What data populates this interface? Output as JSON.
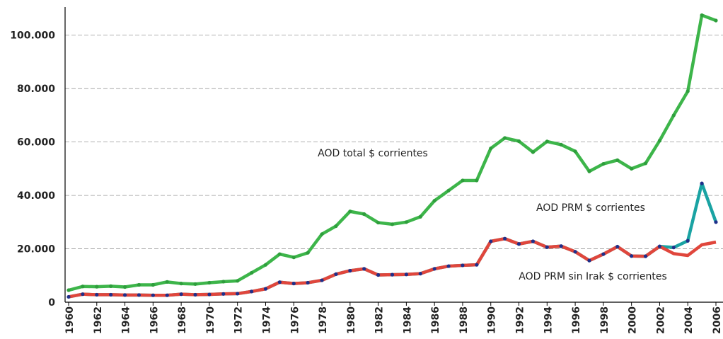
{
  "chart_data": {
    "type": "line",
    "x": [
      1960,
      1961,
      1962,
      1963,
      1964,
      1965,
      1966,
      1967,
      1968,
      1969,
      1970,
      1971,
      1972,
      1973,
      1974,
      1975,
      1976,
      1977,
      1978,
      1979,
      1980,
      1981,
      1982,
      1983,
      1984,
      1985,
      1986,
      1987,
      1988,
      1989,
      1990,
      1991,
      1992,
      1993,
      1994,
      1995,
      1996,
      1997,
      1998,
      1999,
      2000,
      2001,
      2002,
      2003,
      2004,
      2005,
      2006
    ],
    "xlim": [
      1960,
      2006
    ],
    "xticks": [
      1960,
      1962,
      1964,
      1966,
      1968,
      1970,
      1972,
      1974,
      1976,
      1978,
      1980,
      1982,
      1984,
      1986,
      1988,
      1990,
      1992,
      1994,
      1996,
      1998,
      2000,
      2002,
      2004,
      2006
    ],
    "ylim": [
      0,
      110000
    ],
    "yticks": [
      0,
      {
        "value": 20000,
        "label": "20.000"
      },
      {
        "value": 40000,
        "label": "40.000"
      },
      {
        "value": 60000,
        "label": "60.000"
      },
      {
        "value": 80000,
        "label": "80.000"
      },
      {
        "value": 100000,
        "label": "100.000"
      }
    ],
    "grid": true,
    "series": [
      {
        "name": "AOD total $ corrientes",
        "color": "#3db54a",
        "marker_color": "#2e9e3c",
        "values": [
          4500,
          5900,
          5800,
          6000,
          5700,
          6500,
          6500,
          7600,
          7000,
          6800,
          7300,
          7700,
          8000,
          11000,
          14000,
          18000,
          16800,
          18500,
          25500,
          28500,
          34000,
          33000,
          29800,
          29200,
          30000,
          32000,
          38000,
          41800,
          45600,
          45600,
          57600,
          61500,
          60300,
          56200,
          60200,
          59000,
          56500,
          49000,
          51800,
          53200,
          50000,
          52000,
          60500,
          70000,
          79000,
          107500,
          105500
        ]
      },
      {
        "name": "AOD PRM $ corrientes",
        "color": "#1aa3a3",
        "marker_color": "#1f2f8a",
        "values": [
          2000,
          3000,
          2800,
          2800,
          2700,
          2700,
          2600,
          2600,
          3000,
          2800,
          2900,
          3100,
          3200,
          4000,
          5000,
          7500,
          7000,
          7300,
          8200,
          10500,
          11800,
          12500,
          10200,
          10300,
          10400,
          10700,
          12500,
          13500,
          13800,
          14000,
          22800,
          23800,
          21800,
          22800,
          20600,
          21000,
          18900,
          15600,
          18000,
          20800,
          17300,
          17200,
          20900,
          20500,
          23000,
          44500,
          30000
        ]
      },
      {
        "name": "AOD PRM sin Irak $ corrientes",
        "color": "#e0463c",
        "values": [
          2000,
          3000,
          2800,
          2800,
          2700,
          2700,
          2600,
          2600,
          3000,
          2800,
          2900,
          3100,
          3200,
          4000,
          5000,
          7500,
          7000,
          7300,
          8200,
          10500,
          11800,
          12500,
          10200,
          10300,
          10400,
          10700,
          12500,
          13500,
          13800,
          14000,
          22800,
          23800,
          21800,
          22800,
          20600,
          21000,
          18900,
          15600,
          18000,
          20800,
          17300,
          17200,
          20900,
          18200,
          17500,
          21500,
          22500
        ]
      }
    ]
  }
}
